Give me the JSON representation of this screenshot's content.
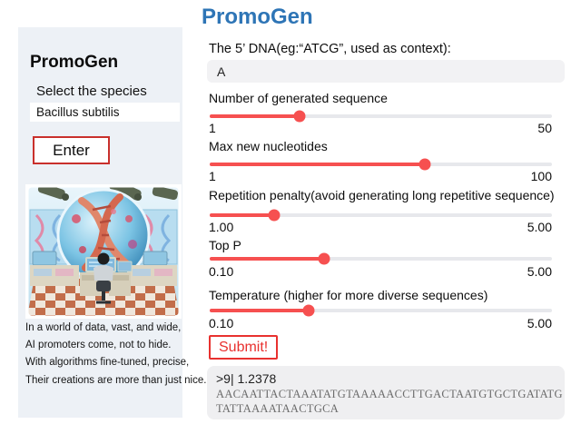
{
  "app": {
    "window_title": "PromoGen"
  },
  "sidebar": {
    "title": "PromoGen",
    "species_label": "Select the species",
    "species_value": "Bacillus subtilis",
    "enter_button": "Enter",
    "artwork": "dna-lab-illustration",
    "poem_lines": [
      "In a world of data, vast, and wide,",
      "AI promoters come, not to hide.",
      "With algorithms fine-tuned, precise,",
      "Their creations are more than just nice."
    ]
  },
  "main": {
    "title": "PromoGen",
    "context_label": "The 5’ DNA(eg:“ATCG”, used as context):",
    "context_value": "A",
    "sliders": [
      {
        "label": "Number of generated sequence",
        "min": "1",
        "max": "50",
        "percent": 26.3
      },
      {
        "label": "Max new nucleotides",
        "min": "1",
        "max": "100",
        "percent": 62.9
      },
      {
        "label": "Repetition penalty(avoid generating long repetitive sequence)",
        "min": "1.00",
        "max": "5.00",
        "percent": 18.8
      },
      {
        "label": "Top P",
        "min": "0.10",
        "max": "5.00",
        "percent": 33.4
      },
      {
        "label": "Temperature (higher for more diverse sequences)",
        "min": "0.10",
        "max": "5.00",
        "percent": 28.9
      }
    ],
    "submit_button": "Submit!",
    "output": {
      "header": ">9| 1.2378",
      "sequence_lines": [
        "AACAATTACTAAATATGTAAAAACCTTGACTAATGTGCTGATATG",
        "TATTAAAATAACTGCA"
      ]
    }
  },
  "colors": {
    "accent_blue": "#2e75b6",
    "slider_red": "#f65050",
    "submit_red": "#e8312f",
    "enter_border_red": "#c9302c",
    "sidebar_bg": "#edf1f6",
    "field_bg": "#f2f2f4",
    "output_bg": "#efeff1"
  }
}
